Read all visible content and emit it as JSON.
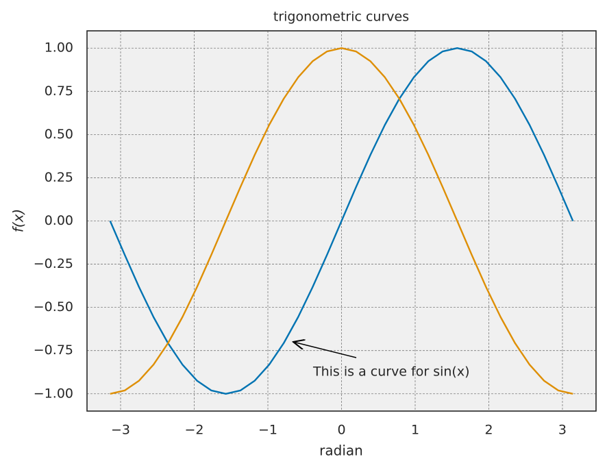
{
  "chart_data": {
    "type": "line",
    "title": "trigonometric curves",
    "x_label": "radian",
    "y_label": "f(x)",
    "x": [
      -3.142,
      -2.945,
      -2.749,
      -2.553,
      -2.356,
      -2.16,
      -1.963,
      -1.767,
      -1.571,
      -1.374,
      -1.178,
      -0.982,
      -0.785,
      -0.589,
      -0.393,
      -0.196,
      0,
      0.196,
      0.393,
      0.589,
      0.785,
      0.982,
      1.178,
      1.374,
      1.571,
      1.767,
      1.963,
      2.16,
      2.356,
      2.553,
      2.749,
      2.945,
      3.142
    ],
    "series": [
      {
        "color": "#0173b2",
        "values": [
          0,
          -0.195,
          -0.383,
          -0.556,
          -0.707,
          -0.831,
          -0.924,
          -0.981,
          -1,
          -0.981,
          -0.924,
          -0.831,
          -0.707,
          -0.556,
          -0.383,
          -0.195,
          0,
          0.195,
          0.383,
          0.556,
          0.707,
          0.831,
          0.924,
          0.981,
          1,
          0.981,
          0.924,
          0.831,
          0.707,
          0.556,
          0.383,
          0.195,
          0
        ]
      },
      {
        "color": "#de8f05",
        "values": [
          -1,
          -0.981,
          -0.924,
          -0.831,
          -0.707,
          -0.556,
          -0.383,
          -0.195,
          0,
          0.195,
          0.383,
          0.556,
          0.707,
          0.831,
          0.924,
          0.981,
          1,
          0.981,
          0.924,
          0.831,
          0.707,
          0.556,
          0.383,
          0.195,
          0,
          -0.195,
          -0.383,
          -0.556,
          -0.707,
          -0.831,
          -0.924,
          -0.981,
          -1
        ]
      }
    ],
    "annotation": "This is a curve for sin(x)",
    "xlim": [
      -3.456,
      3.456
    ],
    "ylim": [
      -1.1,
      1.1
    ],
    "xticks": [
      {
        "value": -3,
        "label": "−3"
      },
      {
        "value": -2,
        "label": "−2"
      },
      {
        "value": -1,
        "label": "−1"
      },
      0,
      1,
      2,
      3
    ],
    "yticks": [
      {
        "value": -1,
        "label": "−1.00"
      },
      {
        "value": -0.75,
        "label": "−0.75"
      },
      {
        "value": -0.5,
        "label": "−0.50"
      },
      {
        "value": -0.25,
        "label": "−0.25"
      },
      {
        "value": 0,
        "label": "0.00"
      },
      {
        "value": 0.25,
        "label": "0.25"
      },
      {
        "value": 0.5,
        "label": "0.50"
      },
      {
        "value": 0.75,
        "label": "0.75"
      },
      {
        "value": 1,
        "label": "1.00"
      }
    ],
    "grid": true
  }
}
